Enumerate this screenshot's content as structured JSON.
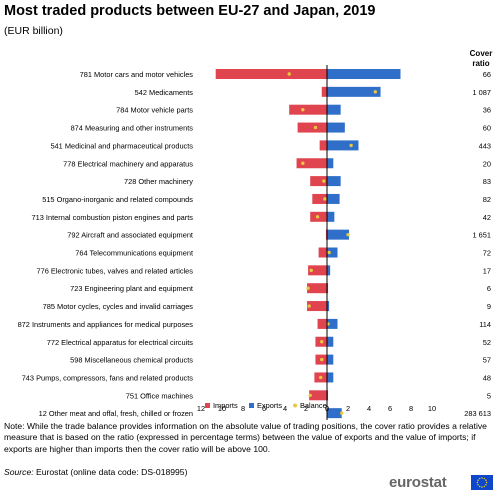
{
  "title": "Most traded products between EU-27 and Japan, 2019",
  "subtitle": "(EUR billion)",
  "cover_ratio_header": [
    "Cover",
    "ratio"
  ],
  "note": "Note: While the trade balance provides information on the absolute value of trading positions, the cover ratio provides a relative measure that is based on the ratio (expressed in percentage terms) between the value of exports and the value of imports; if exports are higher than imports then the cover ratio will be above 100.",
  "source_label": "Source:",
  "source_text": " Eurostat (online data code: DS-018995)",
  "logo_text": "eurostat",
  "colors": {
    "imports": "#e0444f",
    "exports": "#2f6fc9",
    "balance": "#e6c93c",
    "axis": "#000000"
  },
  "chart_data": {
    "type": "bar",
    "orientation": "horizontal",
    "title": "Most traded products between EU-27 and Japan, 2019",
    "subtitle": "(EUR billion)",
    "categories": [
      "781 Motor cars and motor vehicles",
      "542 Medicaments",
      "784 Motor vehicle parts",
      "874 Measuring and other instruments",
      "541 Medicinal and pharmaceutical products",
      "778 Electrical machinery and apparatus",
      "728 Other machinery",
      "515 Organo-inorganic and related compounds",
      "713 Internal combustion piston engines and parts",
      "792 Aircraft and associated equipment",
      "764 Telecommunications equipment",
      "776 Electronic tubes, valves and related articles",
      "723 Engineering plant and equipment",
      "785 Motor cycles, cycles and invalid carriages",
      "872 Instruments and appliances for medical purposes",
      "772 Electrical apparatus for electrical circuits",
      "598 Miscellaneous chemical products",
      "743 Pumps, compressors, fans and related products",
      "751 Office machines",
      "12 Other meat and offal, fresh, chilled or frozen"
    ],
    "series": [
      {
        "name": "Imports",
        "values": [
          -10.6,
          -0.5,
          -3.6,
          -2.8,
          -0.7,
          -2.9,
          -1.6,
          -1.4,
          -1.6,
          -0.1,
          -0.8,
          -1.8,
          -1.9,
          -1.9,
          -0.9,
          -1.1,
          -1.1,
          -1.2,
          -1.7,
          0.0
        ]
      },
      {
        "name": "Exports",
        "values": [
          7.0,
          5.1,
          1.3,
          1.7,
          3.0,
          0.6,
          1.3,
          1.2,
          0.7,
          2.1,
          1.0,
          0.3,
          0.1,
          0.2,
          1.0,
          0.6,
          0.6,
          0.6,
          0.1,
          1.4
        ]
      },
      {
        "name": "Balance",
        "values": [
          -3.6,
          4.6,
          -2.3,
          -1.1,
          2.3,
          -2.3,
          -0.3,
          -0.2,
          -0.9,
          2.0,
          0.2,
          -1.5,
          -1.8,
          -1.7,
          0.1,
          -0.5,
          -0.5,
          -0.6,
          -1.6,
          1.4
        ]
      }
    ],
    "cover_ratio": [
      "66",
      "1 087",
      "36",
      "60",
      "443",
      "20",
      "83",
      "82",
      "42",
      "1 651",
      "72",
      "17",
      "6",
      "9",
      "114",
      "52",
      "57",
      "48",
      "5",
      "283 613"
    ],
    "x_ticks": [
      -12,
      -10,
      -8,
      -6,
      -4,
      -2,
      0,
      2,
      4,
      6,
      8,
      10
    ],
    "x_tick_labels": [
      "12",
      "10",
      "8",
      "6",
      "4",
      "2",
      "0",
      "2",
      "4",
      "6",
      "8",
      "10"
    ],
    "xlim": [
      -12,
      10
    ],
    "legend": [
      "Imports",
      "Exports",
      "Balance"
    ],
    "legend_position": "bottom",
    "grid": false
  }
}
